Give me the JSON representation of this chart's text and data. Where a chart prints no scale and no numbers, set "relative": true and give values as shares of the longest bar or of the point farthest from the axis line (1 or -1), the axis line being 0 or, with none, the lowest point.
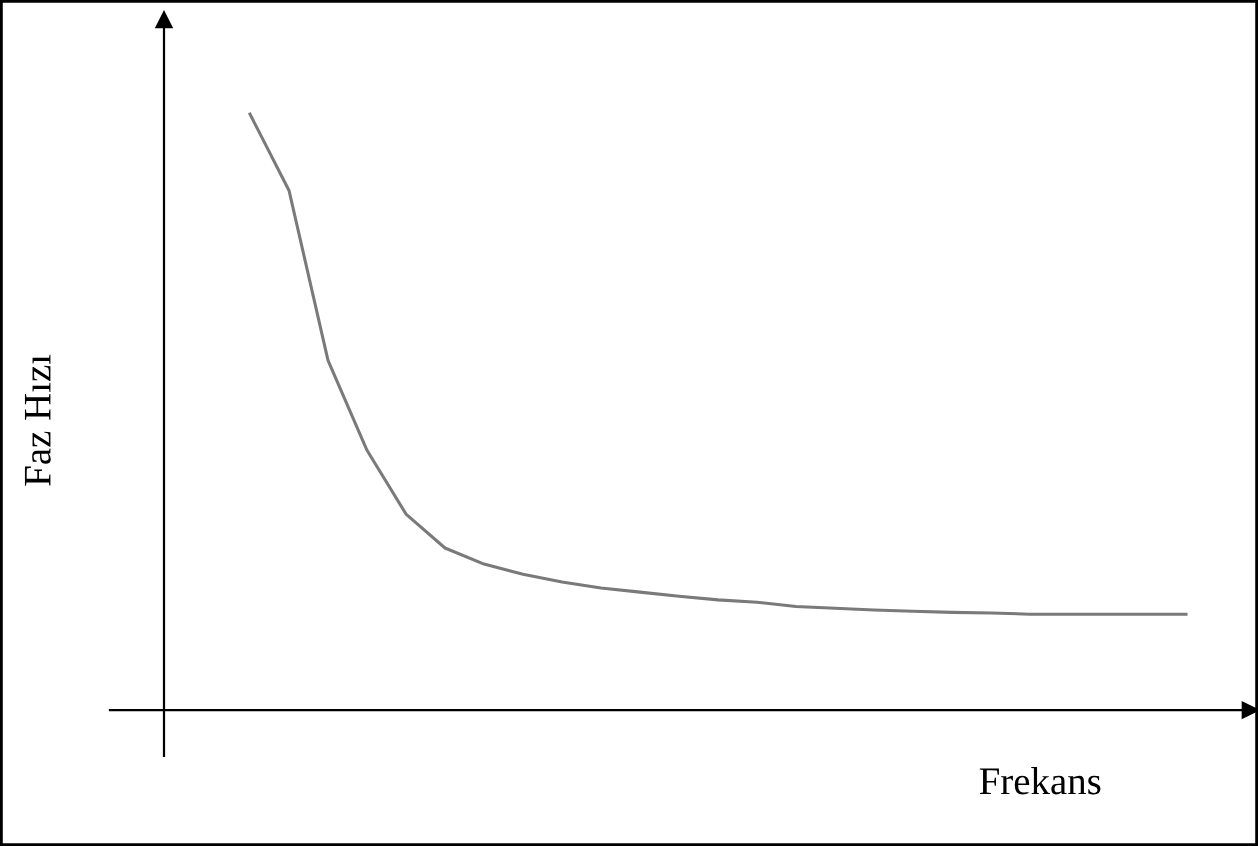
{
  "chart_data": {
    "type": "line",
    "xlabel": "Frekans",
    "ylabel": "Faz Hızı",
    "relative": true,
    "tick_labels": false,
    "categories": [
      null,
      null,
      null,
      null,
      null,
      null,
      null,
      null,
      null,
      null,
      null,
      null,
      null,
      null,
      null,
      null,
      null,
      null,
      null,
      null,
      null,
      null,
      null,
      null,
      null
    ],
    "series": [
      {
        "color": "#7a7a7a",
        "values": [
          1,
          0.872,
          0.587,
          0.436,
          0.329,
          0.272,
          0.245,
          0.228,
          0.215,
          0.205,
          0.198,
          0.191,
          0.185,
          0.181,
          0.174,
          0.171,
          0.168,
          0.166,
          0.164,
          0.163,
          0.161,
          0.161,
          0.161,
          0.161,
          0.161
        ]
      }
    ]
  }
}
